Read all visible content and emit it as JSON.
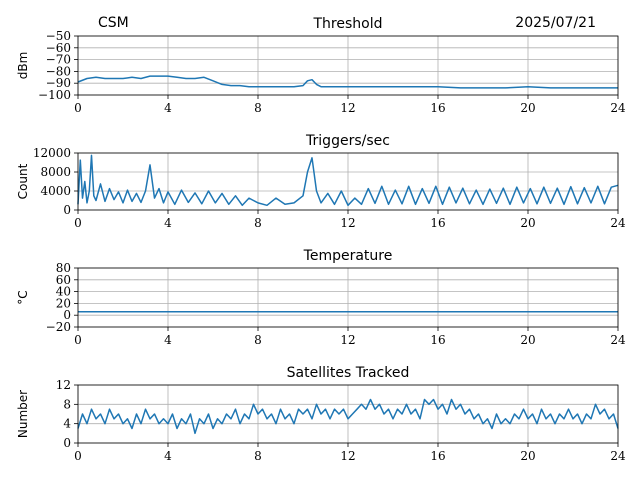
{
  "header": {
    "left_label": "CSM",
    "date": "2025/07/21"
  },
  "chart_data": [
    {
      "type": "line",
      "title": "Threshold",
      "ylabel": "dBm",
      "xlabel": "",
      "xlim": [
        0,
        24
      ],
      "ylim": [
        -100,
        -50
      ],
      "xticks": [
        0,
        4,
        8,
        12,
        16,
        20,
        24
      ],
      "yticks": [
        -100,
        -90,
        -80,
        -70,
        -60,
        -50
      ],
      "grid": true,
      "color": "#1f77b4",
      "series": [
        {
          "x": [
            0,
            0.4,
            0.8,
            1.2,
            1.6,
            2.0,
            2.4,
            2.8,
            3.2,
            3.6,
            4.0,
            4.4,
            4.8,
            5.2,
            5.6,
            6.0,
            6.4,
            6.8,
            7.2,
            7.6,
            8.0,
            8.8,
            9.6,
            10.0,
            10.2,
            10.4,
            10.6,
            10.8,
            11.2,
            12.0,
            13.0,
            14.0,
            15.0,
            16.0,
            17.0,
            18.0,
            19.0,
            20.0,
            21.0,
            22.0,
            23.0,
            24.0
          ],
          "values": [
            -89,
            -86,
            -85,
            -86,
            -86,
            -86,
            -85,
            -86,
            -84,
            -84,
            -84,
            -85,
            -86,
            -86,
            -85,
            -88,
            -91,
            -92,
            -92,
            -93,
            -93,
            -93,
            -93,
            -92,
            -88,
            -87,
            -91,
            -93,
            -93,
            -93,
            -93,
            -93,
            -93,
            -93,
            -94,
            -94,
            -94,
            -93,
            -94,
            -94,
            -94,
            -94
          ]
        }
      ]
    },
    {
      "type": "line",
      "title": "Triggers/sec",
      "ylabel": "Count",
      "xlabel": "",
      "xlim": [
        0,
        24
      ],
      "ylim": [
        0,
        12000
      ],
      "xticks": [
        0,
        4,
        8,
        12,
        16,
        20,
        24
      ],
      "yticks": [
        0,
        4000,
        8000,
        12000
      ],
      "grid": true,
      "color": "#1f77b4",
      "series": [
        {
          "x": [
            0,
            0.1,
            0.2,
            0.3,
            0.4,
            0.5,
            0.6,
            0.7,
            0.8,
            1.0,
            1.2,
            1.4,
            1.6,
            1.8,
            2.0,
            2.2,
            2.4,
            2.6,
            2.8,
            3.0,
            3.2,
            3.4,
            3.6,
            3.8,
            4.0,
            4.3,
            4.6,
            4.9,
            5.2,
            5.5,
            5.8,
            6.1,
            6.4,
            6.7,
            7.0,
            7.3,
            7.6,
            8.0,
            8.4,
            8.8,
            9.2,
            9.6,
            10.0,
            10.2,
            10.4,
            10.6,
            10.8,
            11.1,
            11.4,
            11.7,
            12.0,
            12.3,
            12.6,
            12.9,
            13.2,
            13.5,
            13.8,
            14.1,
            14.4,
            14.7,
            15.0,
            15.3,
            15.6,
            15.9,
            16.2,
            16.5,
            16.8,
            17.1,
            17.4,
            17.7,
            18.0,
            18.3,
            18.6,
            18.9,
            19.2,
            19.5,
            19.8,
            20.1,
            20.4,
            20.7,
            21.0,
            21.3,
            21.6,
            21.9,
            22.2,
            22.5,
            22.8,
            23.1,
            23.4,
            23.7,
            24.0
          ],
          "values": [
            1200,
            10500,
            2500,
            6000,
            1500,
            4000,
            11500,
            3000,
            2000,
            5500,
            1800,
            4500,
            2200,
            3800,
            1500,
            4200,
            1800,
            3500,
            1600,
            4000,
            9500,
            2500,
            4500,
            1500,
            3800,
            1200,
            4200,
            1600,
            3600,
            1300,
            4000,
            1500,
            3500,
            1200,
            3000,
            1000,
            2500,
            1500,
            1000,
            2500,
            1200,
            1500,
            3000,
            8000,
            11000,
            4000,
            1500,
            3500,
            1200,
            4000,
            1000,
            2500,
            1200,
            4500,
            1400,
            5000,
            1200,
            4200,
            1300,
            5000,
            1200,
            4500,
            1400,
            5000,
            1200,
            4800,
            1500,
            4600,
            1300,
            4200,
            1200,
            4400,
            1400,
            4600,
            1200,
            4800,
            1500,
            4500,
            1300,
            4800,
            1400,
            4600,
            1200,
            4900,
            1300,
            4700,
            1500,
            5000,
            1300,
            4800,
            5200
          ]
        }
      ]
    },
    {
      "type": "line",
      "title": "Temperature",
      "ylabel": "°C",
      "xlabel": "",
      "xlim": [
        0,
        24
      ],
      "ylim": [
        -20,
        80
      ],
      "xticks": [
        0,
        4,
        8,
        12,
        16,
        20,
        24
      ],
      "yticks": [
        -20,
        0,
        20,
        40,
        60,
        80
      ],
      "grid": true,
      "color": "#1f77b4",
      "series": [
        {
          "x": [
            0,
            24
          ],
          "values": [
            6,
            6
          ]
        }
      ]
    },
    {
      "type": "line",
      "title": "Satellites Tracked",
      "ylabel": "Number",
      "xlabel": "",
      "xlim": [
        0,
        24
      ],
      "ylim": [
        0,
        12
      ],
      "xticks": [
        0,
        4,
        8,
        12,
        16,
        20,
        24
      ],
      "yticks": [
        0,
        4,
        8,
        12
      ],
      "grid": true,
      "color": "#1f77b4",
      "series": [
        {
          "x": [
            0,
            0.2,
            0.4,
            0.6,
            0.8,
            1.0,
            1.2,
            1.4,
            1.6,
            1.8,
            2.0,
            2.2,
            2.4,
            2.6,
            2.8,
            3.0,
            3.2,
            3.4,
            3.6,
            3.8,
            4.0,
            4.2,
            4.4,
            4.6,
            4.8,
            5.0,
            5.2,
            5.4,
            5.6,
            5.8,
            6.0,
            6.2,
            6.4,
            6.6,
            6.8,
            7.0,
            7.2,
            7.4,
            7.6,
            7.8,
            8.0,
            8.2,
            8.4,
            8.6,
            8.8,
            9.0,
            9.2,
            9.4,
            9.6,
            9.8,
            10.0,
            10.2,
            10.4,
            10.6,
            10.8,
            11.0,
            11.2,
            11.4,
            11.6,
            11.8,
            12.0,
            12.2,
            12.4,
            12.6,
            12.8,
            13.0,
            13.2,
            13.4,
            13.6,
            13.8,
            14.0,
            14.2,
            14.4,
            14.6,
            14.8,
            15.0,
            15.2,
            15.4,
            15.6,
            15.8,
            16.0,
            16.2,
            16.4,
            16.6,
            16.8,
            17.0,
            17.2,
            17.4,
            17.6,
            17.8,
            18.0,
            18.2,
            18.4,
            18.6,
            18.8,
            19.0,
            19.2,
            19.4,
            19.6,
            19.8,
            20.0,
            20.2,
            20.4,
            20.6,
            20.8,
            21.0,
            21.2,
            21.4,
            21.6,
            21.8,
            22.0,
            22.2,
            22.4,
            22.6,
            22.8,
            23.0,
            23.2,
            23.4,
            23.6,
            23.8,
            24.0
          ],
          "values": [
            3,
            6,
            4,
            7,
            5,
            6,
            4,
            7,
            5,
            6,
            4,
            5,
            3,
            6,
            4,
            7,
            5,
            6,
            4,
            5,
            4,
            6,
            3,
            5,
            4,
            6,
            2,
            5,
            4,
            6,
            3,
            5,
            4,
            6,
            5,
            7,
            4,
            6,
            5,
            8,
            6,
            7,
            5,
            6,
            4,
            7,
            5,
            6,
            4,
            7,
            6,
            7,
            5,
            8,
            6,
            7,
            5,
            7,
            6,
            7,
            5,
            6,
            7,
            8,
            7,
            9,
            7,
            8,
            6,
            7,
            5,
            7,
            6,
            8,
            6,
            7,
            5,
            9,
            8,
            9,
            7,
            8,
            6,
            9,
            7,
            8,
            6,
            7,
            5,
            6,
            4,
            5,
            3,
            6,
            4,
            5,
            4,
            6,
            5,
            7,
            5,
            6,
            4,
            7,
            5,
            6,
            4,
            6,
            5,
            7,
            5,
            6,
            4,
            6,
            5,
            8,
            6,
            7,
            5,
            6,
            3
          ]
        }
      ]
    }
  ]
}
